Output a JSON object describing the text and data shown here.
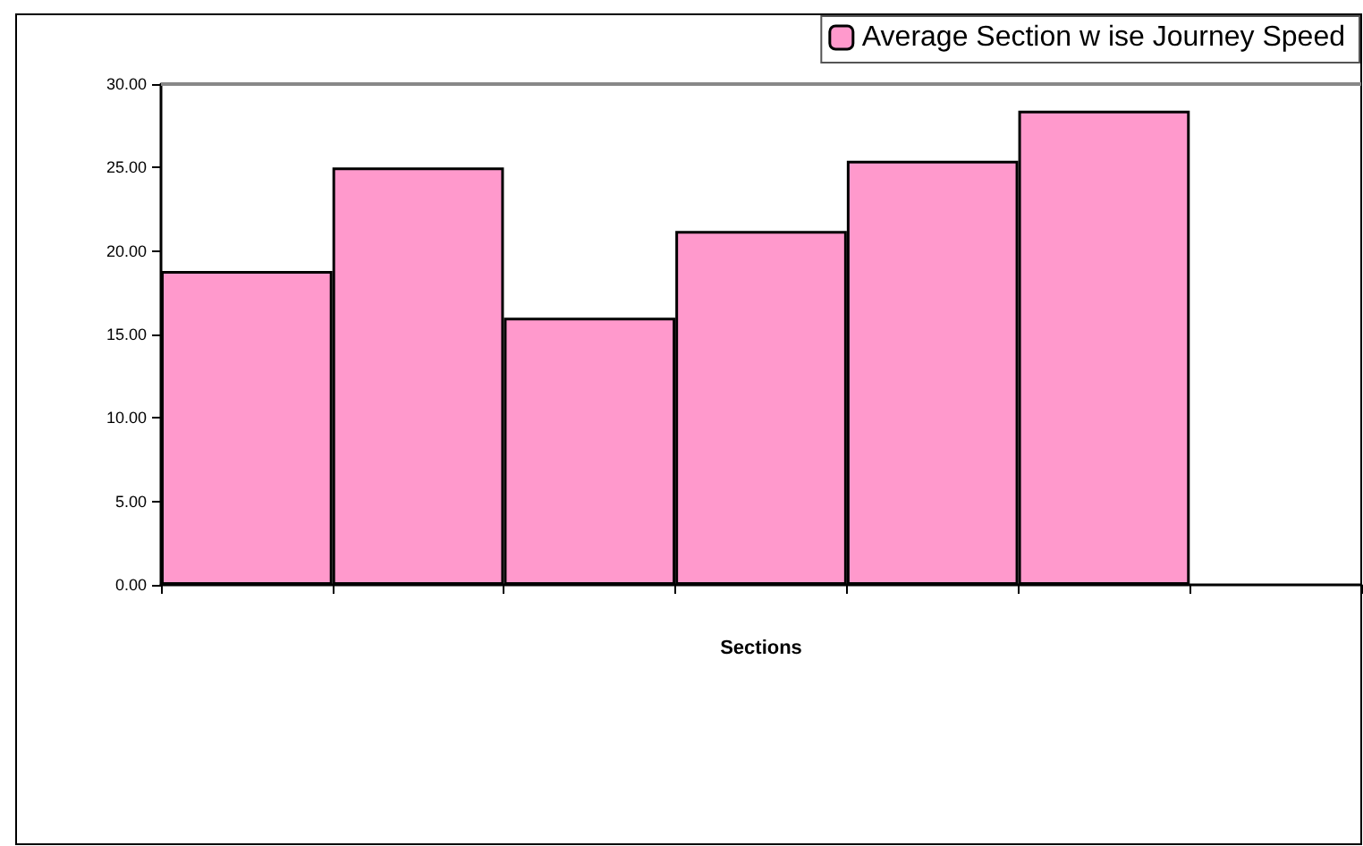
{
  "chart_data": {
    "type": "bar",
    "xlabel": "Sections",
    "categories": [
      null,
      null,
      null,
      null,
      null,
      null,
      null
    ],
    "series": [
      {
        "name": "Average Section w ise Journey Speed",
        "color": "#ff99cc",
        "values": [
          18.8,
          25.0,
          16.0,
          21.2,
          25.4,
          28.4,
          null
        ]
      }
    ],
    "ylim": [
      0,
      30
    ],
    "yticks": [
      {
        "value": 0,
        "label": "0.00"
      },
      {
        "value": 5,
        "label": "5.00"
      },
      {
        "value": 10,
        "label": "10.00"
      },
      {
        "value": 15,
        "label": "15.00"
      },
      {
        "value": 20,
        "label": "20.00"
      },
      {
        "value": 25,
        "label": "25.00"
      },
      {
        "value": 30,
        "label": "30.00"
      }
    ],
    "grid": false,
    "legend": "top right"
  }
}
